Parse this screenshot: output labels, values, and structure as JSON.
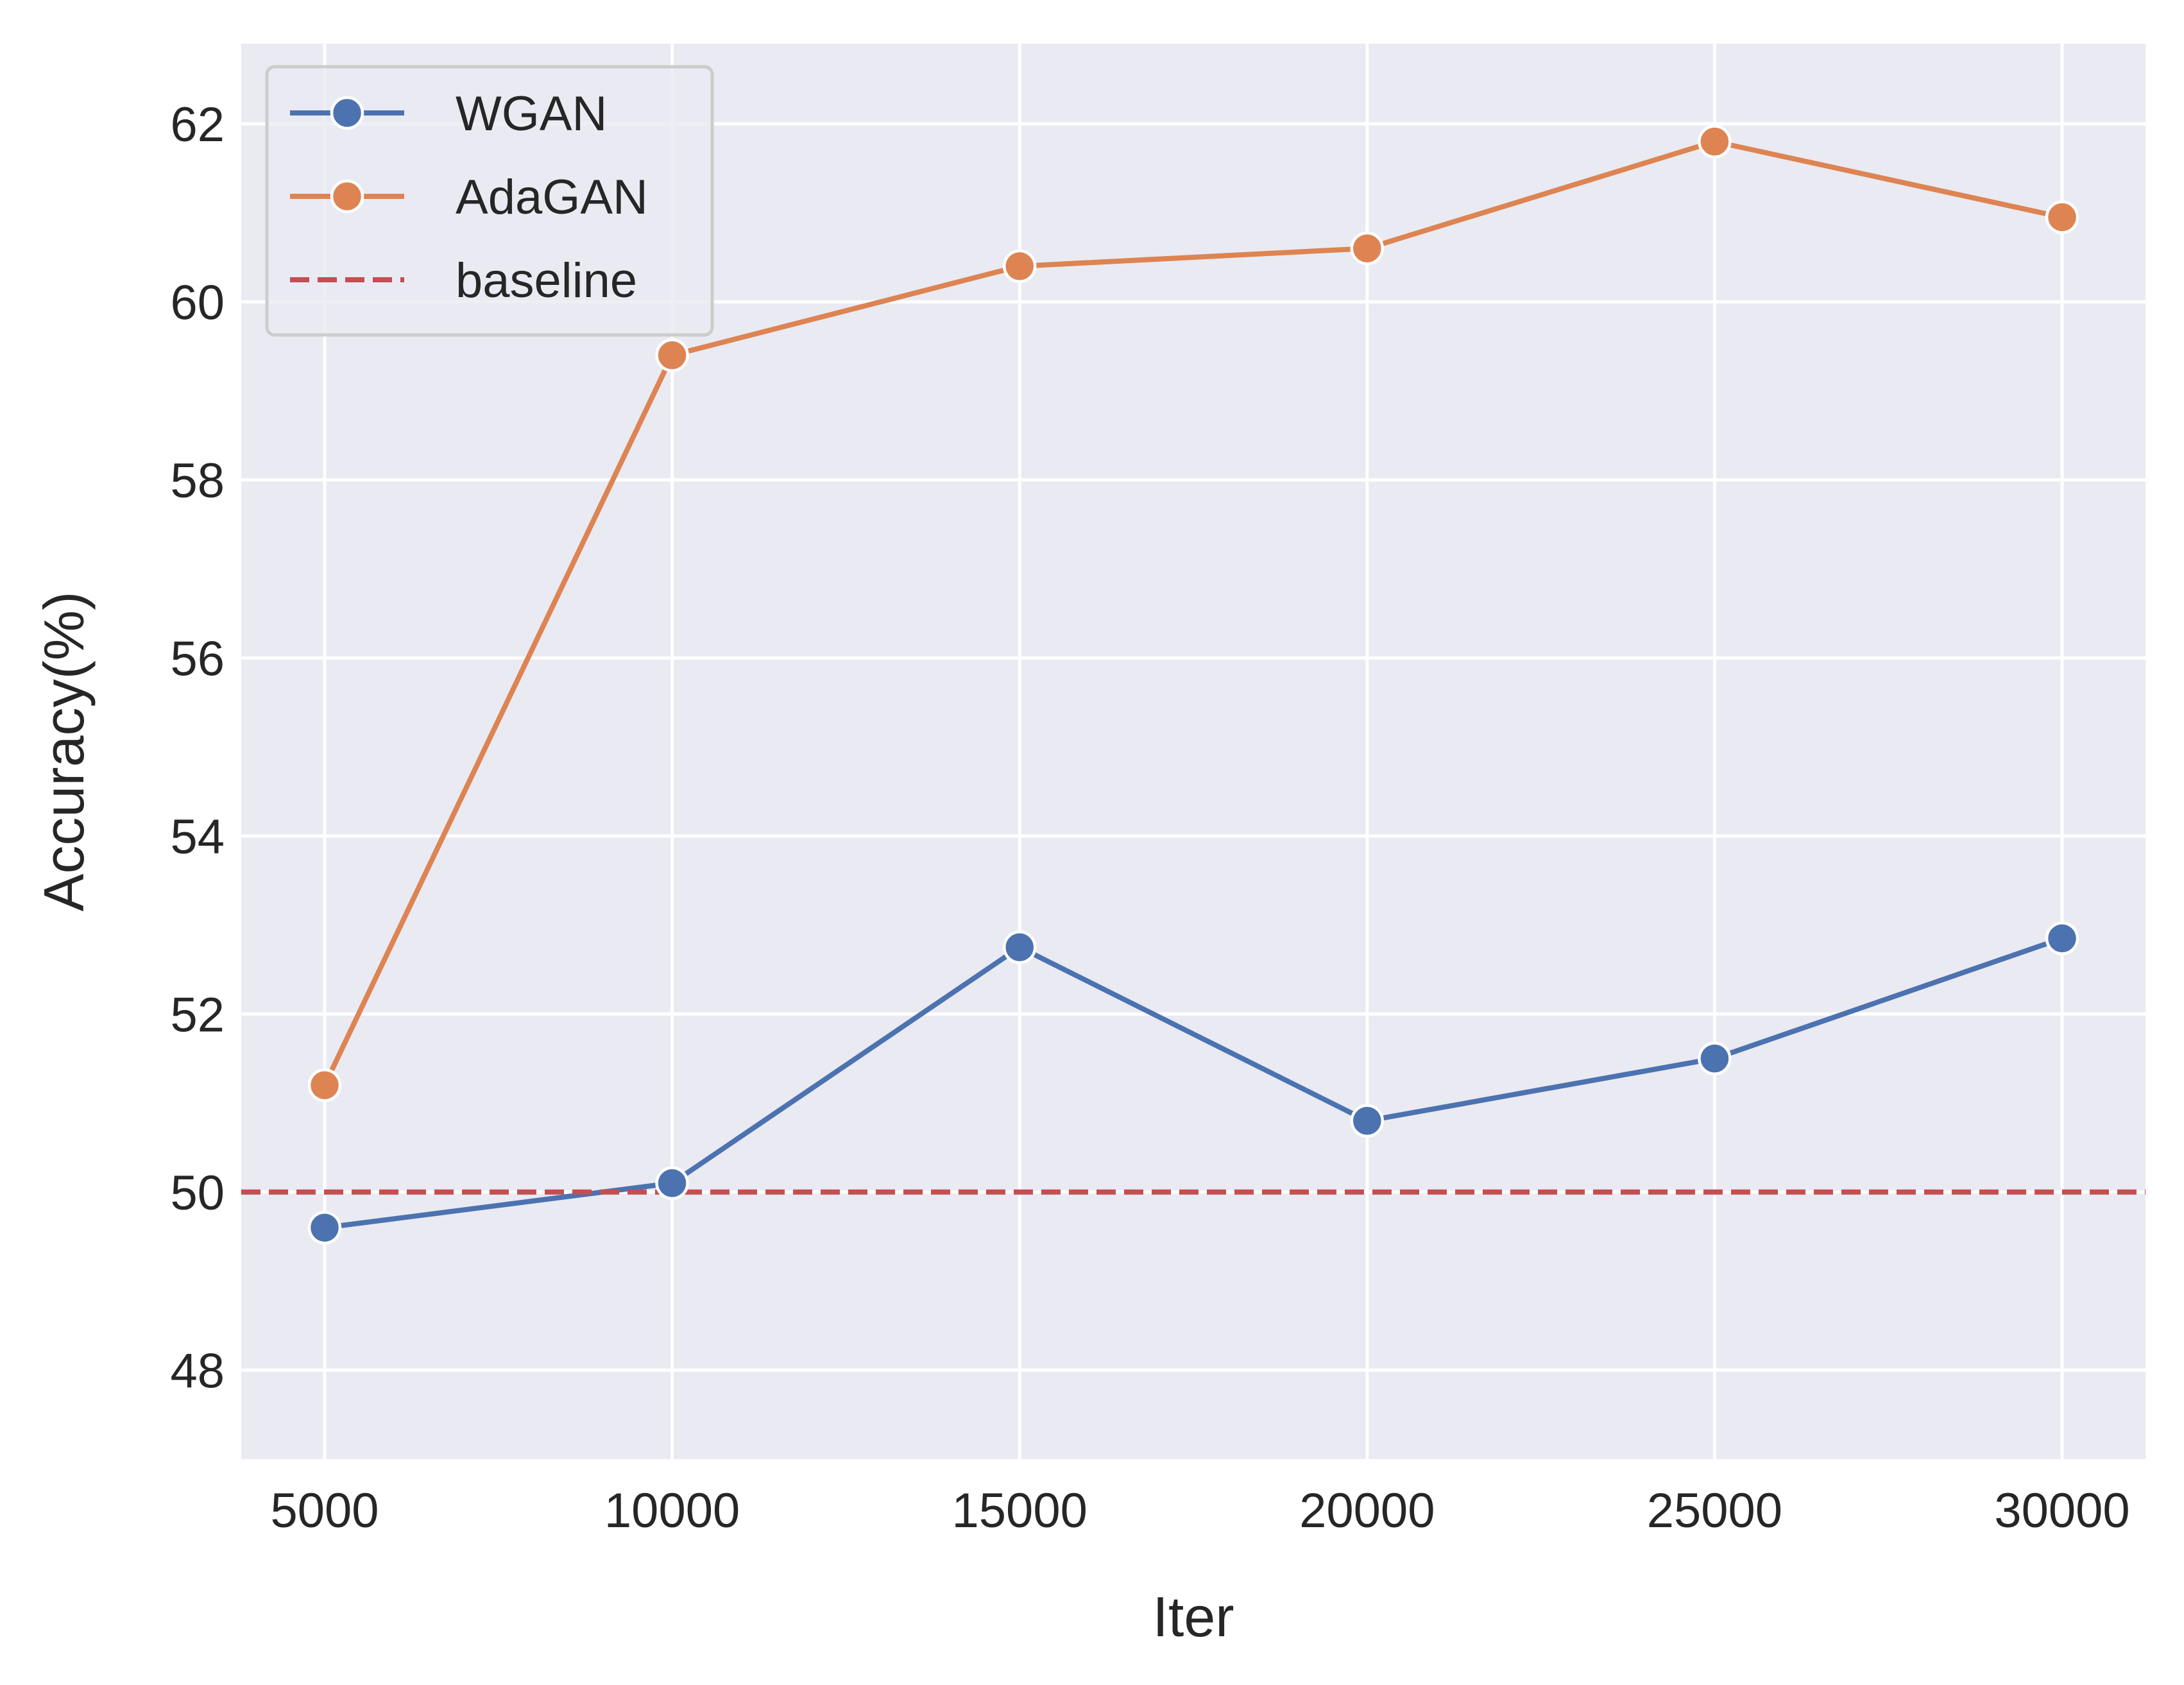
{
  "chart_data": {
    "type": "line",
    "xlabel": "Iter",
    "ylabel": "Accuracy(%)",
    "x": [
      5000,
      10000,
      15000,
      20000,
      25000,
      30000
    ],
    "xticks": [
      "5000",
      "10000",
      "15000",
      "20000",
      "25000",
      "30000"
    ],
    "yticks": [
      "48",
      "50",
      "52",
      "54",
      "56",
      "58",
      "60",
      "62"
    ],
    "xlim": [
      3800,
      31200
    ],
    "ylim": [
      47.0,
      62.9
    ],
    "grid": true,
    "legend_position": "top-left",
    "background": "#eaeaf2",
    "series": [
      {
        "name": "WGAN",
        "color": "#4c72b0",
        "marker": "circle",
        "style": "solid",
        "values": [
          49.6,
          50.1,
          52.75,
          50.8,
          51.5,
          52.85
        ]
      },
      {
        "name": "AdaGAN",
        "color": "#dd8452",
        "marker": "circle",
        "style": "solid",
        "values": [
          51.2,
          59.4,
          60.4,
          60.6,
          61.8,
          60.95
        ]
      },
      {
        "name": "baseline",
        "color": "#c44e52",
        "marker": "none",
        "style": "dashed",
        "y": 50
      }
    ]
  }
}
